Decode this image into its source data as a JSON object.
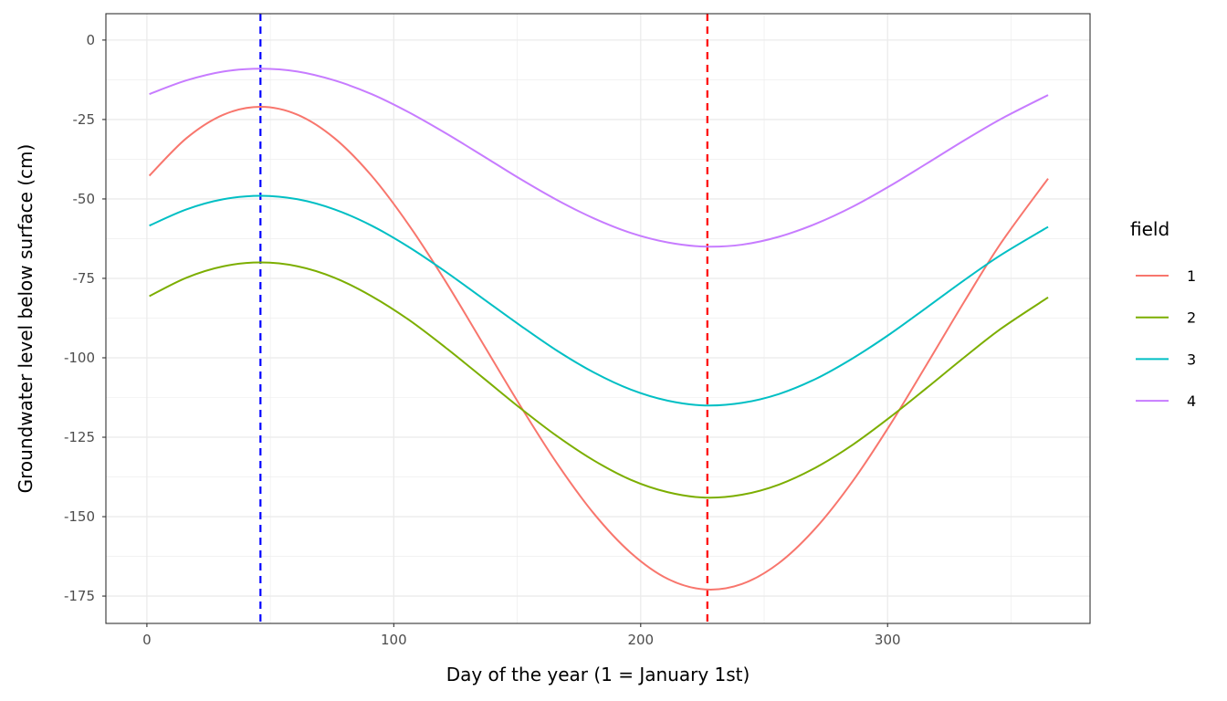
{
  "chart_data": {
    "type": "line",
    "xlabel": "Day of the year (1 = January 1st)",
    "ylabel": "Groundwater level below surface (cm)",
    "xlim": [
      -16.6,
      382
    ],
    "ylim": [
      -183.6,
      8.3
    ],
    "xticks": [
      0,
      100,
      200,
      300
    ],
    "yticks": [
      0,
      -25,
      -50,
      -75,
      -100,
      -125,
      -150,
      -175
    ],
    "grid": true,
    "legend": {
      "title": "field",
      "position": "right"
    },
    "x": [
      1,
      16,
      31,
      46,
      61,
      76,
      91,
      106,
      121,
      136,
      151,
      166,
      181,
      196,
      211,
      226,
      241,
      256,
      271,
      286,
      301,
      316,
      331,
      346,
      365
    ],
    "series": [
      {
        "name": "1",
        "color": "#F8766D",
        "values": [
          -42.7,
          -30.9,
          -23.5,
          -21,
          -23.5,
          -30.9,
          -42.7,
          -58.1,
          -76.0,
          -95.4,
          -114.8,
          -133.1,
          -149.0,
          -161.4,
          -169.6,
          -172.9,
          -171.2,
          -164.6,
          -153.5,
          -138.7,
          -121.1,
          -101.9,
          -82.4,
          -63.8,
          -43.6
        ]
      },
      {
        "name": "2",
        "color": "#7CAE00",
        "values": [
          -80.6,
          -74.8,
          -71.2,
          -70,
          -71.2,
          -74.8,
          -80.6,
          -88.0,
          -96.8,
          -106.2,
          -115.7,
          -124.6,
          -132.3,
          -138.4,
          -142.3,
          -144.0,
          -143.1,
          -139.9,
          -134.5,
          -127.3,
          -118.7,
          -109.4,
          -99.9,
          -90.8,
          -81.0
        ]
      },
      {
        "name": "3",
        "color": "#00BFC4",
        "values": [
          -58.4,
          -53.3,
          -50.1,
          -49,
          -50.1,
          -53.3,
          -58.4,
          -65.1,
          -72.9,
          -81.3,
          -89.7,
          -97.7,
          -104.6,
          -110.0,
          -113.5,
          -115.0,
          -114.2,
          -111.4,
          -106.6,
          -100.1,
          -92.5,
          -84.1,
          -75.6,
          -67.6,
          -58.8
        ]
      },
      {
        "name": "4",
        "color": "#C77CFF",
        "values": [
          -17.0,
          -12.7,
          -9.9,
          -9,
          -9.9,
          -12.7,
          -17.0,
          -22.7,
          -29.3,
          -36.4,
          -43.6,
          -50.3,
          -56.1,
          -60.7,
          -63.7,
          -65.0,
          -64.4,
          -61.9,
          -57.8,
          -52.4,
          -45.9,
          -38.8,
          -31.6,
          -24.8,
          -17.3
        ]
      }
    ],
    "vlines": [
      {
        "x": 46,
        "color": "#0000FF",
        "style": "dashed"
      },
      {
        "x": 227,
        "color": "#FF0000",
        "style": "dashed"
      }
    ]
  }
}
